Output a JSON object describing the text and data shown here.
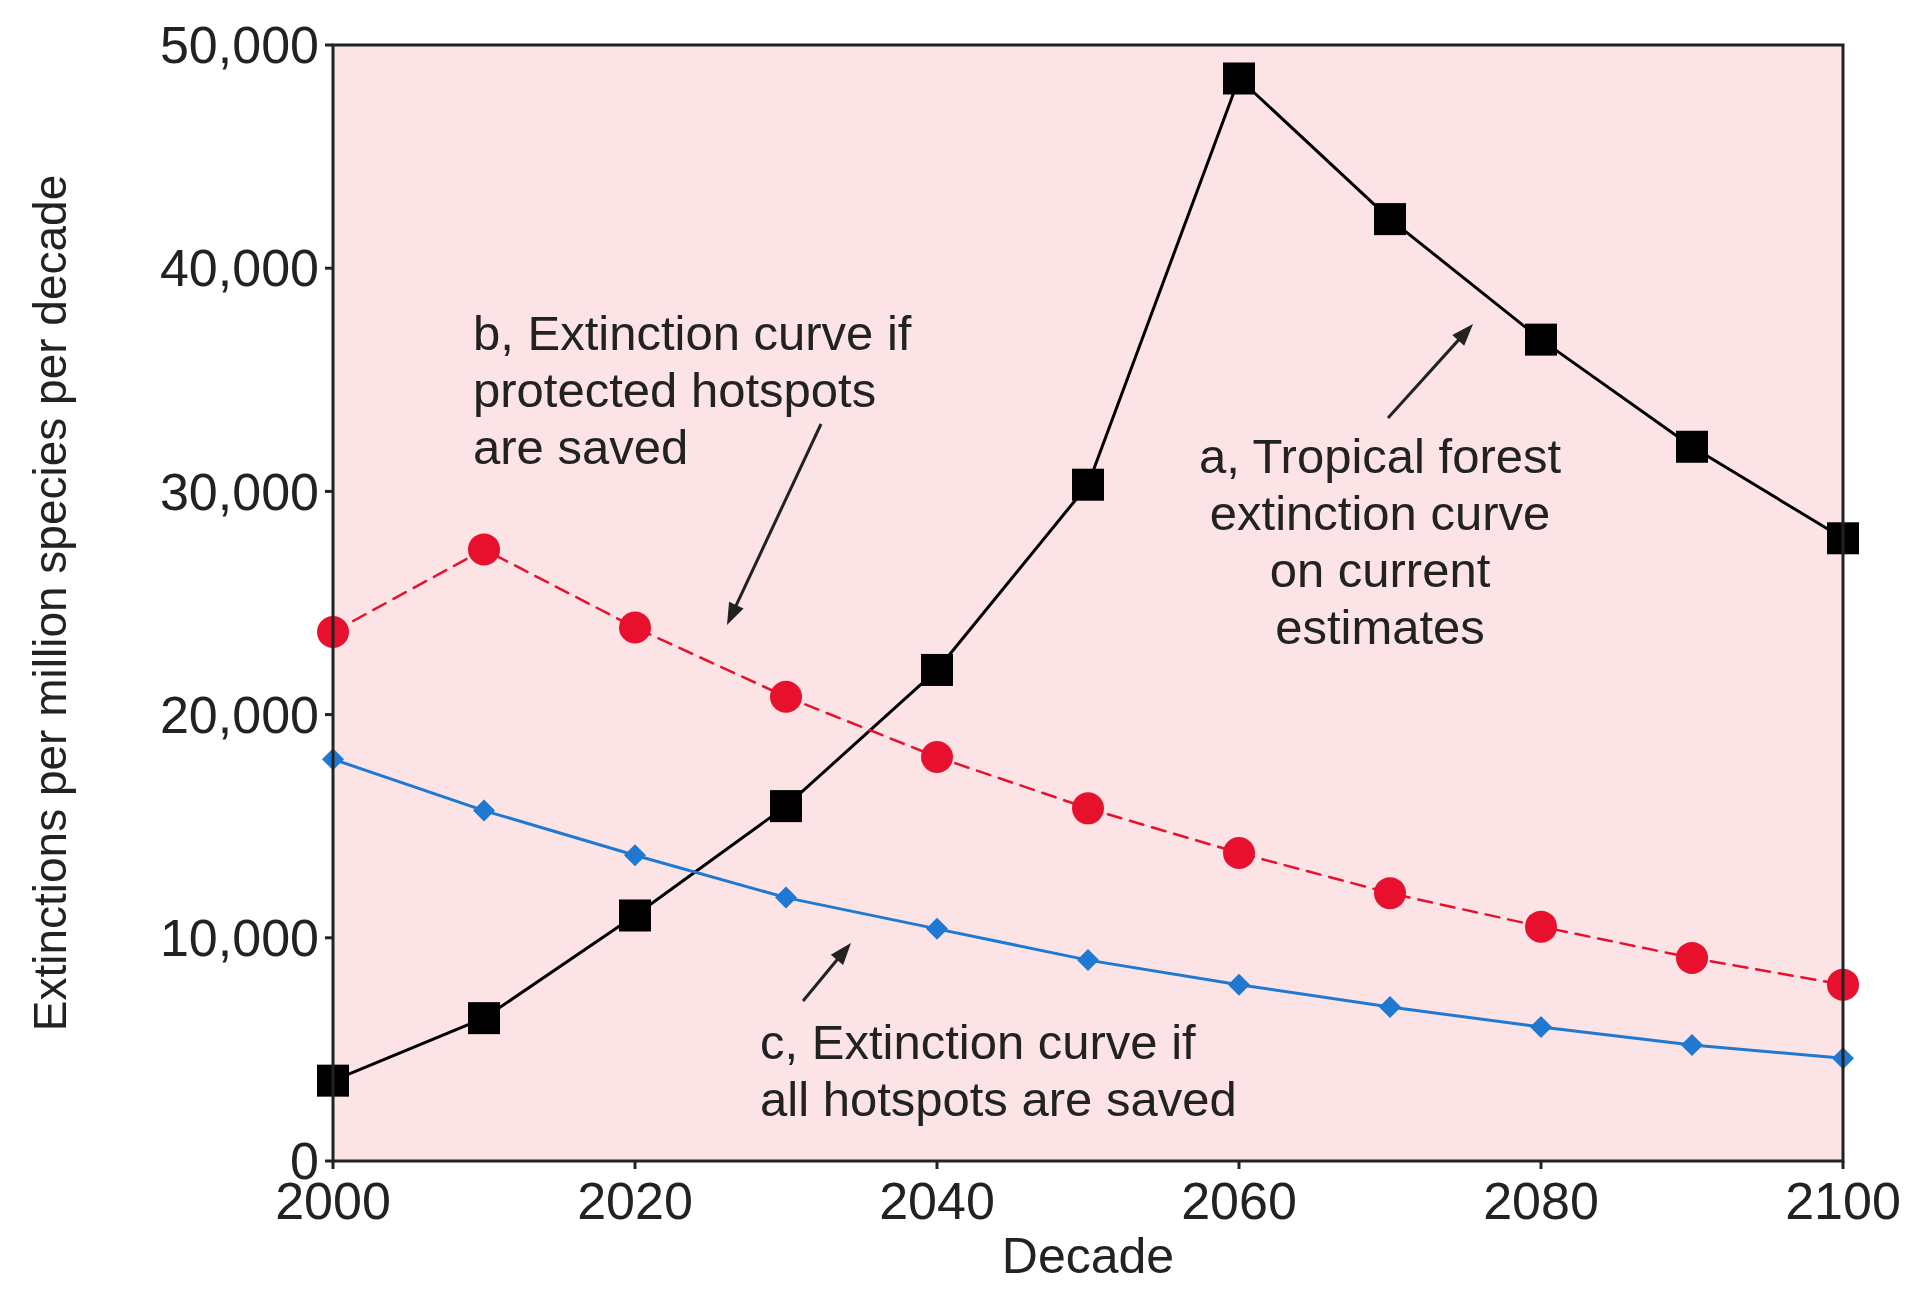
{
  "chart_data": {
    "type": "line",
    "xlabel": "Decade",
    "ylabel": "Extinctions per million species per decade",
    "x": [
      2000,
      2010,
      2020,
      2030,
      2040,
      2050,
      2060,
      2070,
      2080,
      2090,
      2100
    ],
    "xlim": [
      2000,
      2100
    ],
    "xticks": [
      2000,
      2020,
      2040,
      2060,
      2080,
      2100
    ],
    "ylim": [
      0,
      50000
    ],
    "yticks": [
      {
        "value": 0,
        "label": "0"
      },
      {
        "value": 10000,
        "label": "10,000"
      },
      {
        "value": 20000,
        "label": "20,000"
      },
      {
        "value": 30000,
        "label": "30,000"
      },
      {
        "value": 40000,
        "label": "40,000"
      },
      {
        "value": 50000,
        "label": "50,000"
      }
    ],
    "grid": false,
    "series": [
      {
        "color": "#000000",
        "marker": "square",
        "line_style": "solid",
        "values": [
          3600,
          6400,
          11000,
          15900,
          22000,
          30300,
          48500,
          42200,
          36800,
          32000,
          27900
        ]
      },
      {
        "color": "#e8112d",
        "marker": "circle",
        "line_style": "dashed",
        "values": [
          23700,
          27400,
          23900,
          20800,
          18100,
          15800,
          13800,
          12000,
          10500,
          9100,
          7900
        ]
      },
      {
        "color": "#1f78d1",
        "marker": "diamond",
        "line_style": "solid",
        "values": [
          18000,
          15700,
          13700,
          11800,
          10400,
          9000,
          7900,
          6900,
          6000,
          5200,
          4600
        ]
      }
    ],
    "annotations": [
      "a, Tropical forest\nextinction curve\non current\nestimates",
      "b, Extinction curve if\nprotected hotspots\nare saved",
      "c, Extinction curve if\nall hotspots are saved"
    ]
  }
}
